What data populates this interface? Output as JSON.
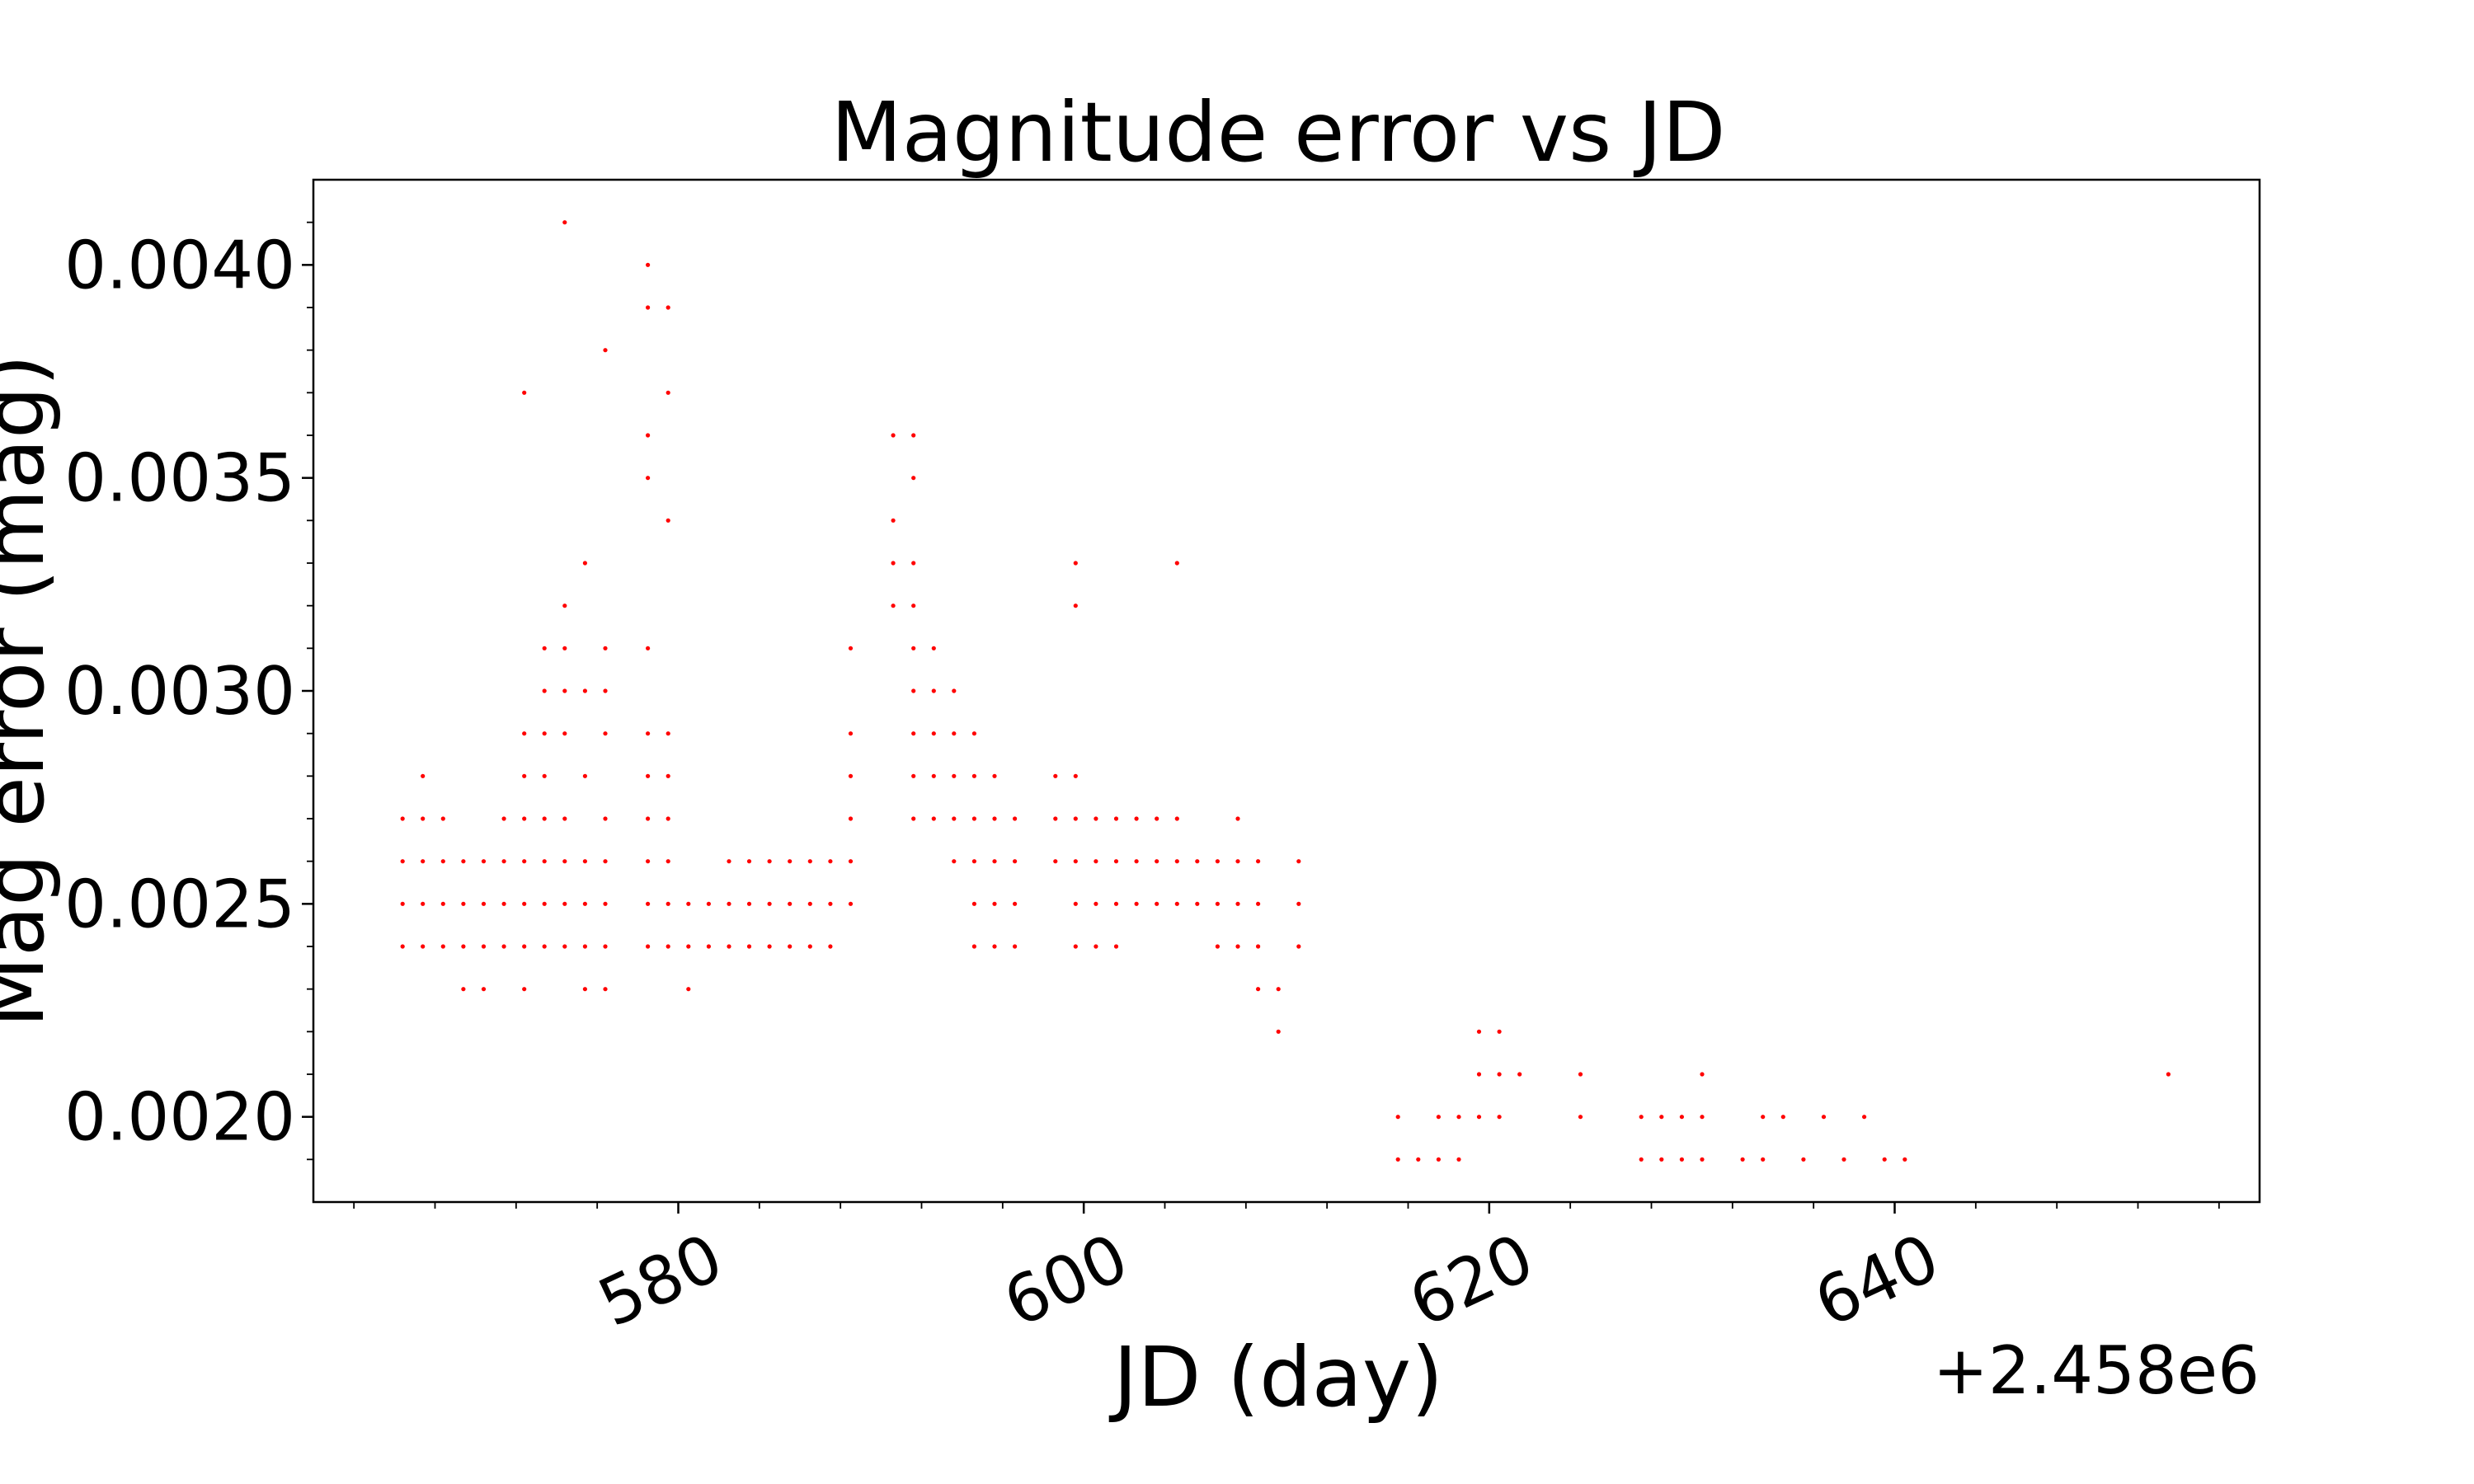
{
  "chart_data": {
    "type": "scatter",
    "title": "Magnitude error vs JD",
    "xlabel": "JD (day)",
    "ylabel": "Mag error (mag)",
    "x_offset_label": "+2.458e6",
    "x_offset": 2458000,
    "xlim": [
      2458562.0,
      2458658.0
    ],
    "ylim": [
      0.0018,
      0.0042
    ],
    "x_ticks": [
      2458580,
      2458600,
      2458620,
      2458640
    ],
    "x_tick_labels": [
      "580",
      "600",
      "620",
      "640"
    ],
    "y_ticks": [
      0.002,
      0.0025,
      0.003,
      0.0035,
      0.004
    ],
    "y_tick_labels": [
      "0.0020",
      "0.0025",
      "0.0030",
      "0.0035",
      "0.0040"
    ],
    "grid": false,
    "marker_color": "#ff0000",
    "series": [
      {
        "points": [
          [
            2458566.4,
            0.0024
          ],
          [
            2458566.4,
            0.0025
          ],
          [
            2458566.4,
            0.0026
          ],
          [
            2458566.4,
            0.0027
          ],
          [
            2458567.4,
            0.0024
          ],
          [
            2458567.4,
            0.0025
          ],
          [
            2458567.4,
            0.0026
          ],
          [
            2458567.4,
            0.0027
          ],
          [
            2458567.4,
            0.0028
          ],
          [
            2458568.4,
            0.0024
          ],
          [
            2458568.4,
            0.0025
          ],
          [
            2458568.4,
            0.0026
          ],
          [
            2458568.4,
            0.0027
          ],
          [
            2458569.4,
            0.0023
          ],
          [
            2458569.4,
            0.0024
          ],
          [
            2458569.4,
            0.0025
          ],
          [
            2458569.4,
            0.0026
          ],
          [
            2458570.4,
            0.0023
          ],
          [
            2458570.4,
            0.0024
          ],
          [
            2458570.4,
            0.0025
          ],
          [
            2458570.4,
            0.0026
          ],
          [
            2458571.4,
            0.0024
          ],
          [
            2458571.4,
            0.0025
          ],
          [
            2458571.4,
            0.0026
          ],
          [
            2458571.4,
            0.0027
          ],
          [
            2458572.4,
            0.0023
          ],
          [
            2458572.4,
            0.0024
          ],
          [
            2458572.4,
            0.0025
          ],
          [
            2458572.4,
            0.0026
          ],
          [
            2458572.4,
            0.0027
          ],
          [
            2458572.4,
            0.0028
          ],
          [
            2458572.4,
            0.0029
          ],
          [
            2458572.4,
            0.0037
          ],
          [
            2458573.4,
            0.0024
          ],
          [
            2458573.4,
            0.0025
          ],
          [
            2458573.4,
            0.0026
          ],
          [
            2458573.4,
            0.0027
          ],
          [
            2458573.4,
            0.0028
          ],
          [
            2458573.4,
            0.0029
          ],
          [
            2458573.4,
            0.003
          ],
          [
            2458573.4,
            0.0031
          ],
          [
            2458574.4,
            0.0024
          ],
          [
            2458574.4,
            0.0025
          ],
          [
            2458574.4,
            0.0026
          ],
          [
            2458574.4,
            0.0027
          ],
          [
            2458574.4,
            0.0029
          ],
          [
            2458574.4,
            0.003
          ],
          [
            2458574.4,
            0.0031
          ],
          [
            2458574.4,
            0.0032
          ],
          [
            2458574.4,
            0.0041
          ],
          [
            2458575.4,
            0.0023
          ],
          [
            2458575.4,
            0.0024
          ],
          [
            2458575.4,
            0.0025
          ],
          [
            2458575.4,
            0.0026
          ],
          [
            2458575.4,
            0.0028
          ],
          [
            2458575.4,
            0.003
          ],
          [
            2458575.4,
            0.0033
          ],
          [
            2458576.4,
            0.0023
          ],
          [
            2458576.4,
            0.0024
          ],
          [
            2458576.4,
            0.0025
          ],
          [
            2458576.4,
            0.0026
          ],
          [
            2458576.4,
            0.0027
          ],
          [
            2458576.4,
            0.0029
          ],
          [
            2458576.4,
            0.003
          ],
          [
            2458576.4,
            0.0031
          ],
          [
            2458576.4,
            0.0038
          ],
          [
            2458578.5,
            0.0024
          ],
          [
            2458578.5,
            0.0025
          ],
          [
            2458578.5,
            0.0026
          ],
          [
            2458578.5,
            0.0027
          ],
          [
            2458578.5,
            0.0028
          ],
          [
            2458578.5,
            0.0029
          ],
          [
            2458578.5,
            0.0031
          ],
          [
            2458578.5,
            0.0035
          ],
          [
            2458578.5,
            0.0036
          ],
          [
            2458578.5,
            0.0039
          ],
          [
            2458578.5,
            0.004
          ],
          [
            2458579.5,
            0.0024
          ],
          [
            2458579.5,
            0.0025
          ],
          [
            2458579.5,
            0.0026
          ],
          [
            2458579.5,
            0.0027
          ],
          [
            2458579.5,
            0.0028
          ],
          [
            2458579.5,
            0.0029
          ],
          [
            2458579.5,
            0.0034
          ],
          [
            2458579.5,
            0.0037
          ],
          [
            2458579.5,
            0.0039
          ],
          [
            2458580.5,
            0.0023
          ],
          [
            2458580.5,
            0.0024
          ],
          [
            2458580.5,
            0.0025
          ],
          [
            2458581.5,
            0.0024
          ],
          [
            2458581.5,
            0.0025
          ],
          [
            2458582.5,
            0.0024
          ],
          [
            2458582.5,
            0.0025
          ],
          [
            2458582.5,
            0.0026
          ],
          [
            2458583.5,
            0.0024
          ],
          [
            2458583.5,
            0.0025
          ],
          [
            2458583.5,
            0.0026
          ],
          [
            2458584.5,
            0.0024
          ],
          [
            2458584.5,
            0.0025
          ],
          [
            2458584.5,
            0.0026
          ],
          [
            2458585.5,
            0.0024
          ],
          [
            2458585.5,
            0.0025
          ],
          [
            2458585.5,
            0.0026
          ],
          [
            2458586.5,
            0.0024
          ],
          [
            2458586.5,
            0.0025
          ],
          [
            2458586.5,
            0.0026
          ],
          [
            2458587.5,
            0.0024
          ],
          [
            2458587.5,
            0.0025
          ],
          [
            2458587.5,
            0.0026
          ],
          [
            2458588.5,
            0.0025
          ],
          [
            2458588.5,
            0.0026
          ],
          [
            2458588.5,
            0.0027
          ],
          [
            2458588.5,
            0.0028
          ],
          [
            2458588.5,
            0.0029
          ],
          [
            2458588.5,
            0.0031
          ],
          [
            2458590.6,
            0.0032
          ],
          [
            2458590.6,
            0.0033
          ],
          [
            2458590.6,
            0.0034
          ],
          [
            2458590.6,
            0.0036
          ],
          [
            2458591.6,
            0.0027
          ],
          [
            2458591.6,
            0.0028
          ],
          [
            2458591.6,
            0.0029
          ],
          [
            2458591.6,
            0.003
          ],
          [
            2458591.6,
            0.0031
          ],
          [
            2458591.6,
            0.0032
          ],
          [
            2458591.6,
            0.0033
          ],
          [
            2458591.6,
            0.0035
          ],
          [
            2458591.6,
            0.0036
          ],
          [
            2458592.6,
            0.0027
          ],
          [
            2458592.6,
            0.0028
          ],
          [
            2458592.6,
            0.0029
          ],
          [
            2458592.6,
            0.003
          ],
          [
            2458592.6,
            0.0031
          ],
          [
            2458593.6,
            0.0026
          ],
          [
            2458593.6,
            0.0027
          ],
          [
            2458593.6,
            0.0028
          ],
          [
            2458593.6,
            0.0029
          ],
          [
            2458593.6,
            0.003
          ],
          [
            2458594.6,
            0.0024
          ],
          [
            2458594.6,
            0.0025
          ],
          [
            2458594.6,
            0.0026
          ],
          [
            2458594.6,
            0.0027
          ],
          [
            2458594.6,
            0.0028
          ],
          [
            2458594.6,
            0.0029
          ],
          [
            2458595.6,
            0.0024
          ],
          [
            2458595.6,
            0.0025
          ],
          [
            2458595.6,
            0.0026
          ],
          [
            2458595.6,
            0.0027
          ],
          [
            2458595.6,
            0.0028
          ],
          [
            2458596.6,
            0.0024
          ],
          [
            2458596.6,
            0.0025
          ],
          [
            2458596.6,
            0.0026
          ],
          [
            2458596.6,
            0.0027
          ],
          [
            2458598.6,
            0.0026
          ],
          [
            2458598.6,
            0.0027
          ],
          [
            2458598.6,
            0.0028
          ],
          [
            2458599.6,
            0.0024
          ],
          [
            2458599.6,
            0.0025
          ],
          [
            2458599.6,
            0.0026
          ],
          [
            2458599.6,
            0.0027
          ],
          [
            2458599.6,
            0.0028
          ],
          [
            2458599.6,
            0.0032
          ],
          [
            2458599.6,
            0.0033
          ],
          [
            2458600.6,
            0.0024
          ],
          [
            2458600.6,
            0.0025
          ],
          [
            2458600.6,
            0.0026
          ],
          [
            2458600.6,
            0.0027
          ],
          [
            2458601.6,
            0.0024
          ],
          [
            2458601.6,
            0.0025
          ],
          [
            2458601.6,
            0.0026
          ],
          [
            2458601.6,
            0.0027
          ],
          [
            2458602.6,
            0.0025
          ],
          [
            2458602.6,
            0.0026
          ],
          [
            2458602.6,
            0.0027
          ],
          [
            2458603.6,
            0.0025
          ],
          [
            2458603.6,
            0.0026
          ],
          [
            2458603.6,
            0.0027
          ],
          [
            2458604.6,
            0.0025
          ],
          [
            2458604.6,
            0.0026
          ],
          [
            2458604.6,
            0.0027
          ],
          [
            2458604.6,
            0.0033
          ],
          [
            2458605.6,
            0.0025
          ],
          [
            2458605.6,
            0.0026
          ],
          [
            2458606.6,
            0.0024
          ],
          [
            2458606.6,
            0.0025
          ],
          [
            2458606.6,
            0.0026
          ],
          [
            2458607.6,
            0.0024
          ],
          [
            2458607.6,
            0.0025
          ],
          [
            2458607.6,
            0.0026
          ],
          [
            2458607.6,
            0.0027
          ],
          [
            2458608.6,
            0.0023
          ],
          [
            2458608.6,
            0.0024
          ],
          [
            2458608.6,
            0.0025
          ],
          [
            2458608.6,
            0.0026
          ],
          [
            2458609.6,
            0.0022
          ],
          [
            2458609.6,
            0.0023
          ],
          [
            2458610.6,
            0.0024
          ],
          [
            2458610.6,
            0.0025
          ],
          [
            2458610.6,
            0.0026
          ],
          [
            2458615.5,
            0.0019
          ],
          [
            2458615.5,
            0.002
          ],
          [
            2458616.5,
            0.0019
          ],
          [
            2458617.5,
            0.0019
          ],
          [
            2458617.5,
            0.002
          ],
          [
            2458618.5,
            0.0019
          ],
          [
            2458618.5,
            0.002
          ],
          [
            2458619.5,
            0.002
          ],
          [
            2458619.5,
            0.0021
          ],
          [
            2458619.5,
            0.0022
          ],
          [
            2458620.5,
            0.002
          ],
          [
            2458620.5,
            0.0021
          ],
          [
            2458620.5,
            0.0022
          ],
          [
            2458621.5,
            0.0021
          ],
          [
            2458624.5,
            0.002
          ],
          [
            2458624.5,
            0.0021
          ],
          [
            2458627.5,
            0.0019
          ],
          [
            2458627.5,
            0.002
          ],
          [
            2458628.5,
            0.0019
          ],
          [
            2458628.5,
            0.002
          ],
          [
            2458629.5,
            0.0019
          ],
          [
            2458629.5,
            0.002
          ],
          [
            2458630.5,
            0.0019
          ],
          [
            2458630.5,
            0.002
          ],
          [
            2458630.5,
            0.0021
          ],
          [
            2458632.5,
            0.0019
          ],
          [
            2458633.5,
            0.0019
          ],
          [
            2458633.5,
            0.002
          ],
          [
            2458634.5,
            0.002
          ],
          [
            2458635.5,
            0.0019
          ],
          [
            2458636.5,
            0.002
          ],
          [
            2458637.5,
            0.0019
          ],
          [
            2458638.5,
            0.002
          ],
          [
            2458639.5,
            0.0019
          ],
          [
            2458640.5,
            0.0019
          ],
          [
            2458653.5,
            0.0021
          ]
        ]
      }
    ]
  }
}
